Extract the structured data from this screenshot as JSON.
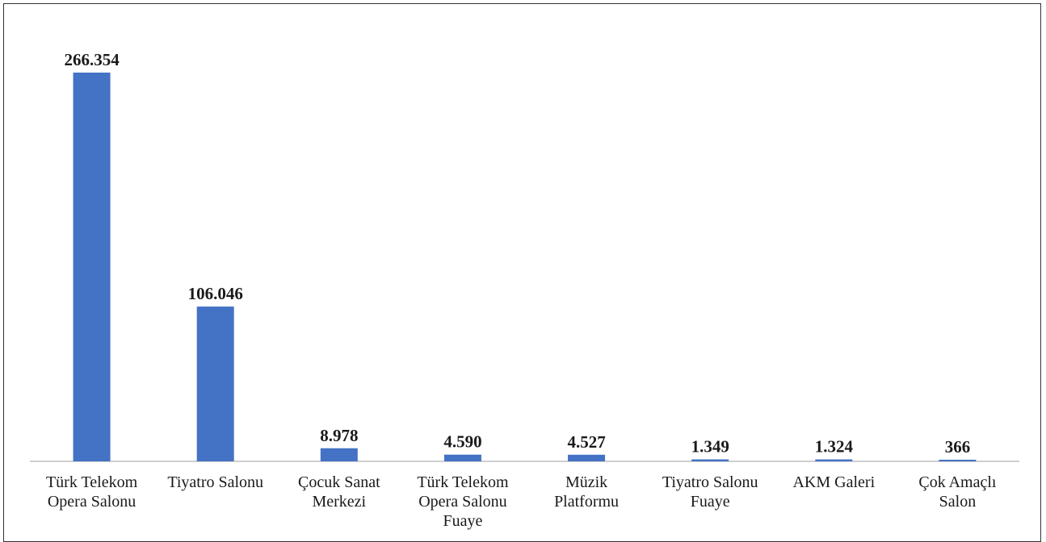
{
  "chart_data": {
    "type": "bar",
    "title": "",
    "xlabel": "",
    "ylabel": "",
    "ylim": [
      0,
      266354
    ],
    "grid": false,
    "bar_color": "#4472C4",
    "categories": [
      [
        "Türk Telekom",
        "Opera Salonu"
      ],
      [
        "Tiyatro Salonu"
      ],
      [
        "Çocuk Sanat",
        "Merkezi"
      ],
      [
        "Türk Telekom",
        "Opera Salonu",
        "Fuaye"
      ],
      [
        "Müzik",
        "Platformu"
      ],
      [
        "Tiyatro Salonu",
        "Fuaye"
      ],
      [
        "AKM Galeri"
      ],
      [
        "Çok Amaçlı",
        "Salon"
      ]
    ],
    "values": [
      266354,
      106046,
      8978,
      4590,
      4527,
      1349,
      1324,
      366
    ],
    "value_labels": [
      "266.354",
      "106.046",
      "8.978",
      "4.590",
      "4.527",
      "1.349",
      "1.324",
      "366"
    ]
  }
}
